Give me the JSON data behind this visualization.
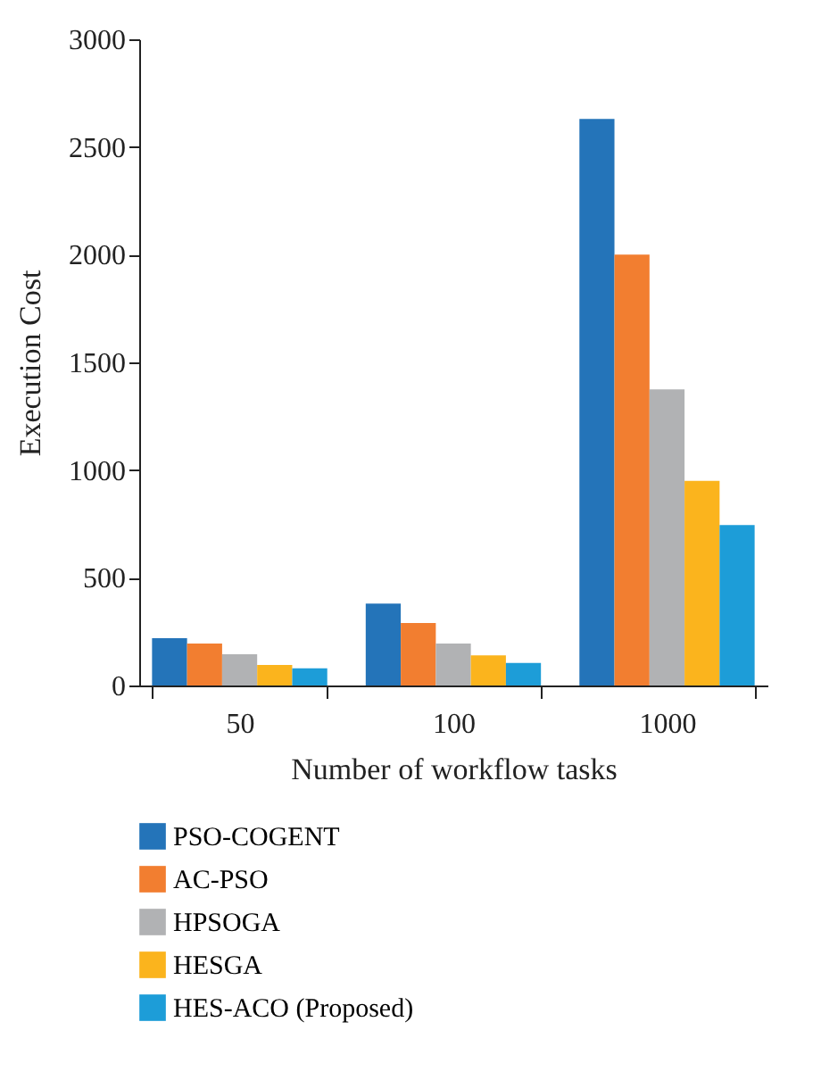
{
  "chart_data": {
    "type": "bar",
    "xlabel": "Number of workflow tasks",
    "ylabel": "Execution Cost",
    "categories": [
      "50",
      "100",
      "1000"
    ],
    "series": [
      {
        "name": "PSO-COGENT",
        "color": "#2474b9",
        "values": [
          220,
          380,
          2630
        ]
      },
      {
        "name": "AC-PSO",
        "color": "#f27e30",
        "values": [
          195,
          290,
          2000
        ]
      },
      {
        "name": "HPSOGA",
        "color": "#b1b2b4",
        "values": [
          145,
          195,
          1375
        ]
      },
      {
        "name": "HESGA",
        "color": "#fbb41d",
        "values": [
          95,
          140,
          950
        ]
      },
      {
        "name": "HES-ACO (Proposed)",
        "color": "#1d9dd8",
        "values": [
          80,
          105,
          745
        ]
      }
    ],
    "ylim": [
      0,
      3000
    ],
    "yticks": [
      0,
      500,
      1000,
      1500,
      2000,
      2500,
      3000
    ],
    "legend": "bottom"
  }
}
